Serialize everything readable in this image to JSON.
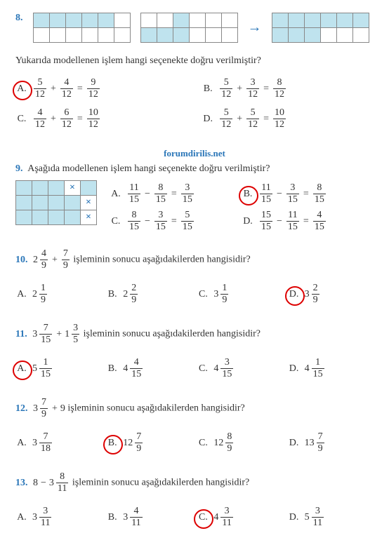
{
  "watermark": "forumdirilis.net",
  "q8": {
    "num": "8.",
    "text": "Yukarıda modellenen işlem hangi seçenekte doğru verilmiştir?",
    "grids": {
      "g1": [
        [
          1,
          1,
          1,
          1,
          1,
          0
        ],
        [
          0,
          0,
          0,
          0,
          0,
          0
        ]
      ],
      "g2": [
        [
          0,
          0,
          1,
          0,
          0,
          0
        ],
        [
          1,
          1,
          1,
          0,
          0,
          0
        ]
      ],
      "g3": [
        [
          1,
          1,
          1,
          1,
          1,
          1
        ],
        [
          1,
          1,
          1,
          0,
          0,
          0
        ]
      ]
    },
    "opts": {
      "A": {
        "n1": "5",
        "d1": "12",
        "n2": "4",
        "d2": "12",
        "nr": "9",
        "dr": "12",
        "correct": true
      },
      "B": {
        "n1": "5",
        "d1": "12",
        "n2": "3",
        "d2": "12",
        "nr": "8",
        "dr": "12",
        "correct": false
      },
      "C": {
        "n1": "4",
        "d1": "12",
        "n2": "6",
        "d2": "12",
        "nr": "10",
        "dr": "12",
        "correct": false
      },
      "D": {
        "n1": "5",
        "d1": "12",
        "n2": "5",
        "d2": "12",
        "nr": "10",
        "dr": "12",
        "correct": false
      }
    }
  },
  "q9": {
    "num": "9.",
    "text": "Aşağıda modellenen işlem hangi seçenekte doğru verilmiştir?",
    "grid": [
      [
        1,
        1,
        1,
        2,
        1
      ],
      [
        1,
        1,
        1,
        1,
        2
      ],
      [
        1,
        1,
        1,
        1,
        2
      ]
    ],
    "opts": {
      "A": {
        "n1": "11",
        "d1": "15",
        "n2": "8",
        "d2": "15",
        "nr": "3",
        "dr": "15",
        "correct": false
      },
      "B": {
        "n1": "11",
        "d1": "15",
        "n2": "3",
        "d2": "15",
        "nr": "8",
        "dr": "15",
        "correct": true
      },
      "C": {
        "n1": "8",
        "d1": "15",
        "n2": "3",
        "d2": "15",
        "nr": "5",
        "dr": "15",
        "correct": false
      },
      "D": {
        "n1": "15",
        "d1": "15",
        "n2": "11",
        "d2": "15",
        "nr": "4",
        "dr": "15",
        "correct": false
      }
    }
  },
  "q10": {
    "num": "10.",
    "expr": {
      "w": "2",
      "n1": "4",
      "d1": "9",
      "n2": "7",
      "d2": "9"
    },
    "tail": " işleminin sonucu aşağıdakilerden hangisidir?",
    "opts": {
      "A": {
        "w": "2",
        "n": "1",
        "d": "9",
        "correct": false
      },
      "B": {
        "w": "2",
        "n": "2",
        "d": "9",
        "correct": false
      },
      "C": {
        "w": "3",
        "n": "1",
        "d": "9",
        "correct": false
      },
      "D": {
        "w": "3",
        "n": "2",
        "d": "9",
        "correct": true
      }
    }
  },
  "q11": {
    "num": "11.",
    "expr": {
      "w1": "3",
      "n1": "7",
      "d1": "15",
      "w2": "1",
      "n2": "3",
      "d2": "5"
    },
    "tail": " işleminin sonucu aşağıdakilerden hangisidir?",
    "opts": {
      "A": {
        "w": "5",
        "n": "1",
        "d": "15",
        "correct": true
      },
      "B": {
        "w": "4",
        "n": "4",
        "d": "15",
        "correct": false
      },
      "C": {
        "w": "4",
        "n": "3",
        "d": "15",
        "correct": false
      },
      "D": {
        "w": "4",
        "n": "1",
        "d": "15",
        "correct": false
      }
    }
  },
  "q12": {
    "num": "12.",
    "expr": {
      "w": "3",
      "n": "7",
      "d": "9",
      "add": "9"
    },
    "tail": " işleminin sonucu aşağıdakilerden hangisidir?",
    "opts": {
      "A": {
        "w": "3",
        "n": "7",
        "d": "18",
        "correct": false
      },
      "B": {
        "w": "12",
        "n": "7",
        "d": "9",
        "correct": true
      },
      "C": {
        "w": "12",
        "n": "8",
        "d": "9",
        "correct": false
      },
      "D": {
        "w": "13",
        "n": "7",
        "d": "9",
        "correct": false
      }
    }
  },
  "q13": {
    "num": "13.",
    "expr": {
      "a": "8",
      "w": "3",
      "n": "8",
      "d": "11"
    },
    "tail": " işleminin sonucu aşağıdakilerden hangisidir?",
    "opts": {
      "A": {
        "w": "3",
        "n": "3",
        "d": "11",
        "correct": false
      },
      "B": {
        "w": "3",
        "n": "4",
        "d": "11",
        "correct": false
      },
      "C": {
        "w": "4",
        "n": "3",
        "d": "11",
        "correct": true
      },
      "D": {
        "w": "5",
        "n": "3",
        "d": "11",
        "correct": false
      }
    }
  }
}
